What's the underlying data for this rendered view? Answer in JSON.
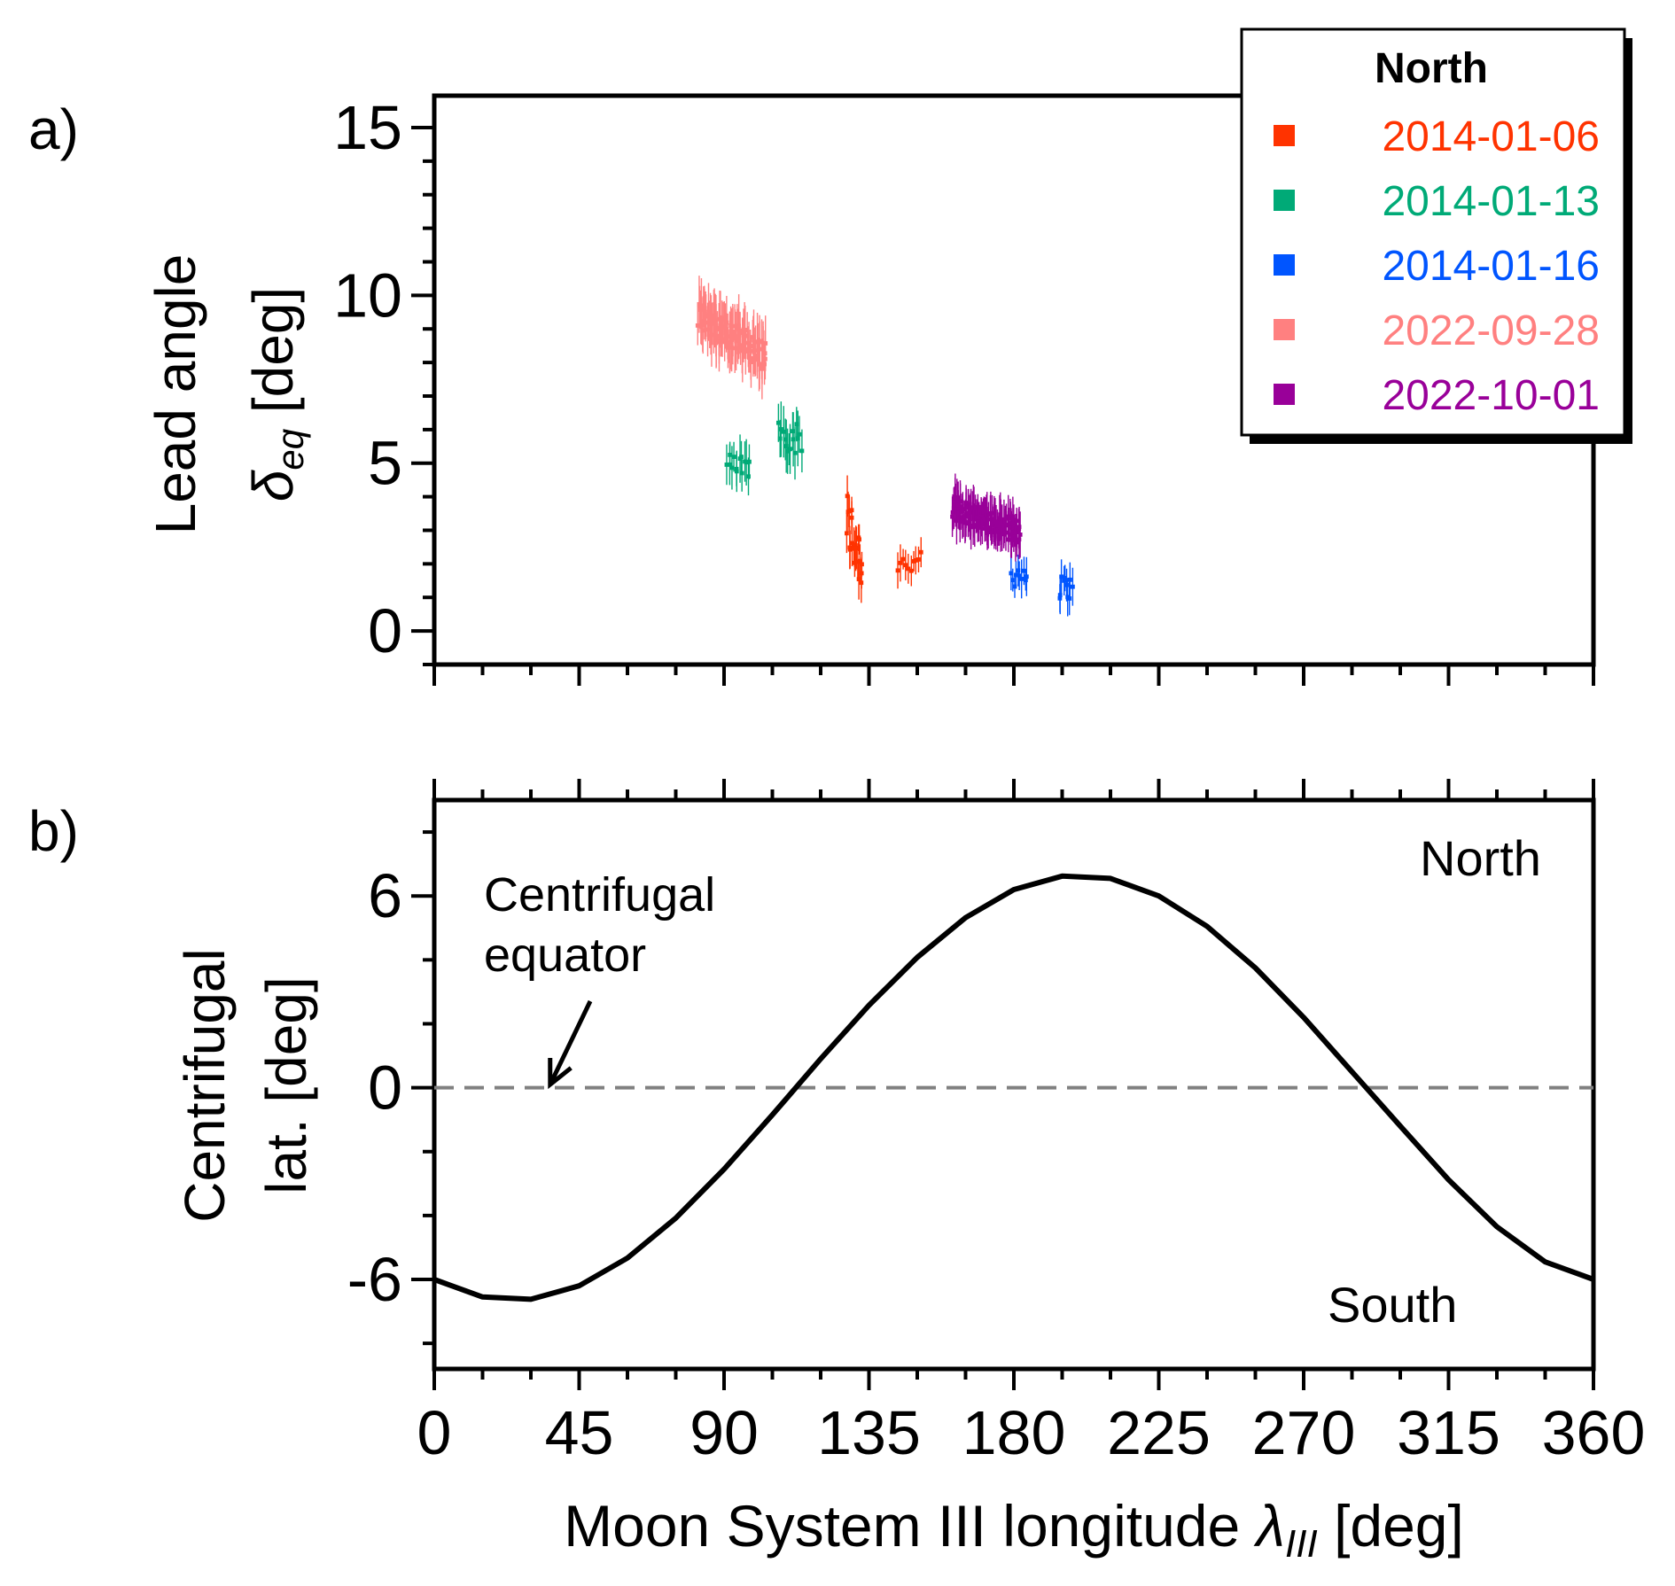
{
  "panel_labels": {
    "a": "a)",
    "b": "b)"
  },
  "chart_data": [
    {
      "type": "scatter",
      "panel": "a",
      "ylabel_line1": "Lead angle",
      "ylabel_symbol": "δ",
      "ylabel_subscript": "eq",
      "ylabel_unit": "[deg]",
      "xlim": [
        0,
        360
      ],
      "ylim": [
        -1,
        15.95
      ],
      "x_ticks": [
        0,
        45,
        90,
        135,
        180,
        225,
        270,
        315,
        360
      ],
      "y_ticks": [
        0,
        5,
        10,
        15
      ],
      "y_tick_labels": [
        "0",
        "5",
        "10",
        "15"
      ],
      "grid": false,
      "legend": {
        "title": "North",
        "placement": "top-right",
        "entries": [
          {
            "label": "2014-01-06",
            "color": "#ff3300"
          },
          {
            "label": "2014-01-13",
            "color": "#00aa77"
          },
          {
            "label": "2014-01-16",
            "color": "#0055ff"
          },
          {
            "label": "2022-09-28",
            "color": "#ff8080"
          },
          {
            "label": "2022-10-01",
            "color": "#990099"
          }
        ]
      },
      "series": [
        {
          "name": "2014-01-06",
          "color": "#ff3300",
          "clusters": [
            {
              "x": [
                128,
                133
              ],
              "y_center": 2.7,
              "y_spread": 1.0,
              "err": 0.6,
              "n": 22,
              "slope": -0.25
            },
            {
              "x": [
                144,
                151
              ],
              "y_center": 2.0,
              "y_spread": 0.35,
              "err": 0.5,
              "n": 10,
              "slope": 0
            }
          ]
        },
        {
          "name": "2014-01-13",
          "color": "#00aa77",
          "clusters": [
            {
              "x": [
                91,
                98
              ],
              "y_center": 4.9,
              "y_spread": 0.4,
              "err": 0.6,
              "n": 14,
              "slope": 0
            },
            {
              "x": [
                107,
                114
              ],
              "y_center": 5.8,
              "y_spread": 0.5,
              "err": 0.7,
              "n": 16,
              "slope": -0.06
            }
          ]
        },
        {
          "name": "2014-01-16",
          "color": "#0055ff",
          "clusters": [
            {
              "x": [
                179,
                184
              ],
              "y_center": 1.7,
              "y_spread": 0.4,
              "err": 0.5,
              "n": 10,
              "slope": 0
            },
            {
              "x": [
                194,
                198
              ],
              "y_center": 1.3,
              "y_spread": 0.35,
              "err": 0.5,
              "n": 10,
              "slope": 0
            }
          ]
        },
        {
          "name": "2022-09-28",
          "color": "#ff8080",
          "clusters": [
            {
              "x": [
                82,
                103
              ],
              "y_center": 8.8,
              "y_spread": 0.45,
              "err": 0.8,
              "n": 110,
              "slope": -0.06
            }
          ]
        },
        {
          "name": "2022-10-01",
          "color": "#990099",
          "clusters": [
            {
              "x": [
                161,
                182
              ],
              "y_center": 3.3,
              "y_spread": 0.35,
              "err": 0.6,
              "n": 130,
              "slope": -0.035
            }
          ]
        }
      ]
    },
    {
      "type": "line",
      "panel": "b",
      "xlabel_main": "Moon System III longitude",
      "xlabel_symbol": "λ",
      "xlabel_subscript": "III",
      "xlabel_unit": "[deg]",
      "ylabel_line1": "Centrifugal",
      "ylabel_line2": "lat. [deg]",
      "xlim": [
        0,
        360
      ],
      "ylim": [
        -8.8,
        9.0
      ],
      "x_ticks": [
        0,
        45,
        90,
        135,
        180,
        225,
        270,
        315,
        360
      ],
      "x_tick_labels": [
        "0",
        "45",
        "90",
        "135",
        "180",
        "225",
        "270",
        "315",
        "360"
      ],
      "y_ticks": [
        -6,
        0,
        6
      ],
      "y_tick_labels": [
        "-6",
        "0",
        "6"
      ],
      "grid": false,
      "series": [
        {
          "name": "Centrifugal latitude",
          "color": "#000000",
          "x": [
            0,
            15,
            30,
            45,
            60,
            75,
            90,
            105,
            120,
            135,
            150,
            165,
            180,
            195,
            210,
            225,
            240,
            255,
            270,
            285,
            300,
            315,
            330,
            345,
            360
          ],
          "y": [
            -6.0,
            -6.55,
            -6.62,
            -6.2,
            -5.33,
            -4.08,
            -2.55,
            -0.85,
            0.9,
            2.58,
            4.08,
            5.32,
            6.2,
            6.62,
            6.55,
            6.0,
            5.05,
            3.75,
            2.2,
            0.5,
            -1.2,
            -2.88,
            -4.35,
            -5.45,
            -6.0
          ]
        }
      ],
      "reference_line": {
        "y": 0,
        "style": "dashed",
        "color": "#808080"
      },
      "annotations": {
        "equator_line1": "Centrifugal",
        "equator_line2": "equator",
        "arrow_target": {
          "x": 36,
          "y": 0.1
        },
        "north": "North",
        "south": "South"
      }
    }
  ]
}
